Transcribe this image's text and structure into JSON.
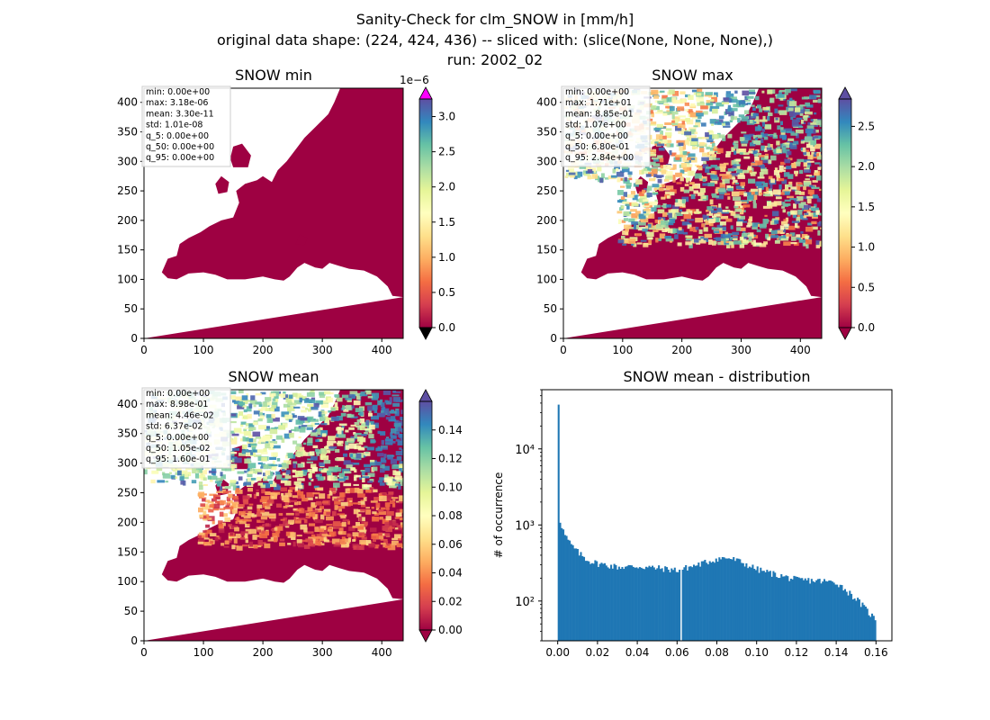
{
  "suptitle": {
    "line1": "Sanity-Check for clm_SNOW in [mm/h]",
    "line2": "original data shape: (224, 424, 436) -- sliced with: (slice(None, None, None),)",
    "line3": "run: 2002_02"
  },
  "colors": {
    "cmap": [
      "#9e0142",
      "#d53e4f",
      "#f46d43",
      "#fdae61",
      "#fee08b",
      "#ffffbf",
      "#e6f598",
      "#abdda4",
      "#66c2a5",
      "#3288bd",
      "#5e4fa2"
    ],
    "land_zero": "#9e0142",
    "over_min": "#ff00ff",
    "under": "#000000",
    "bar": "#1f77b4",
    "stats_box": "#cccccc"
  },
  "chart_data": [
    {
      "type": "heatmap",
      "title": "SNOW min",
      "xticks": [
        "0",
        "100",
        "200",
        "300",
        "400"
      ],
      "yticks": [
        "0",
        "50",
        "100",
        "150",
        "200",
        "250",
        "300",
        "350",
        "400"
      ],
      "xlim": [
        0,
        436
      ],
      "ylim": [
        0,
        424
      ],
      "colorbar": {
        "ticks": [
          "0.0",
          "0.5",
          "1.0",
          "1.5",
          "2.0",
          "2.5",
          "3.0"
        ],
        "range": [
          0,
          3.25
        ],
        "offset_label": "1e−6",
        "extend": "both"
      },
      "stats": [
        "min: 0.00e+00",
        "max: 3.18e-06",
        "mean: 3.30e-11",
        "std: 1.01e-08",
        "q_5: 0.00e+00",
        "q_50: 0.00e+00",
        "q_95: 0.00e+00"
      ]
    },
    {
      "type": "heatmap",
      "title": "SNOW max",
      "xticks": [
        "0",
        "100",
        "200",
        "300",
        "400"
      ],
      "yticks": [
        "0",
        "50",
        "100",
        "150",
        "200",
        "250",
        "300",
        "350",
        "400"
      ],
      "xlim": [
        0,
        436
      ],
      "ylim": [
        0,
        424
      ],
      "colorbar": {
        "ticks": [
          "0.0",
          "0.5",
          "1.0",
          "1.5",
          "2.0",
          "2.5"
        ],
        "range": [
          0,
          2.84
        ],
        "offset_label": "",
        "extend": "both"
      },
      "stats": [
        "min: 0.00e+00",
        "max: 1.71e+01",
        "mean: 8.85e-01",
        "std: 1.07e+00",
        "q_5: 0.00e+00",
        "q_50: 6.80e-01",
        "q_95: 2.84e+00"
      ]
    },
    {
      "type": "heatmap",
      "title": "SNOW mean",
      "xticks": [
        "0",
        "100",
        "200",
        "300",
        "400"
      ],
      "yticks": [
        "0",
        "50",
        "100",
        "150",
        "200",
        "250",
        "300",
        "350",
        "400"
      ],
      "xlim": [
        0,
        436
      ],
      "ylim": [
        0,
        424
      ],
      "colorbar": {
        "ticks": [
          "0.00",
          "0.02",
          "0.04",
          "0.06",
          "0.08",
          "0.10",
          "0.12",
          "0.14"
        ],
        "range": [
          0,
          0.16
        ],
        "offset_label": "",
        "extend": "both"
      },
      "stats": [
        "min: 0.00e+00",
        "max: 8.98e-01",
        "mean: 4.46e-02",
        "std: 6.37e-02",
        "q_5: 0.00e+00",
        "q_50: 1.05e-02",
        "q_95: 1.60e-01"
      ]
    },
    {
      "type": "bar",
      "title": "SNOW mean - distribution",
      "ylabel": "# of occurrence",
      "xlabel": "",
      "yscale": "log",
      "xlim": [
        -0.008,
        0.168
      ],
      "ylim": [
        30,
        60000
      ],
      "xticks": [
        "0.00",
        "0.02",
        "0.04",
        "0.06",
        "0.08",
        "0.10",
        "0.12",
        "0.14",
        "0.16"
      ],
      "ytick_labels": [
        "10²",
        "10³",
        "10⁴"
      ],
      "bins": {
        "start": 0.0,
        "end": 0.16,
        "width": 0.0008
      },
      "profile_x": [
        0.0,
        0.0008,
        0.0016,
        0.003,
        0.006,
        0.01,
        0.015,
        0.02,
        0.03,
        0.04,
        0.05,
        0.06,
        0.07,
        0.08,
        0.085,
        0.09,
        0.1,
        0.11,
        0.12,
        0.13,
        0.14,
        0.15,
        0.155,
        0.16
      ],
      "profile_y": [
        40000,
        1150,
        980,
        750,
        560,
        430,
        340,
        310,
        280,
        285,
        270,
        255,
        300,
        360,
        370,
        340,
        260,
        220,
        190,
        185,
        175,
        105,
        75,
        55
      ],
      "gap_at": 0.0616
    }
  ]
}
